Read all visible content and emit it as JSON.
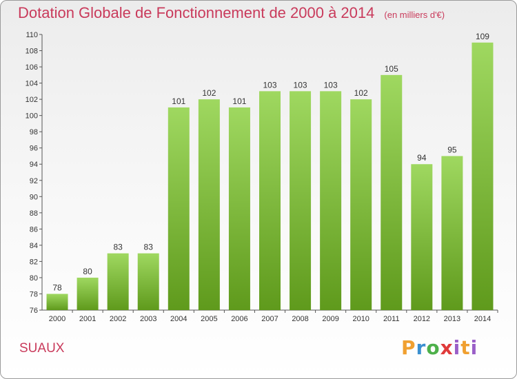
{
  "header": {
    "title": "Dotation Globale de Fonctionnement de 2000 à 2014",
    "units": "(en milliers d'€)"
  },
  "footer": {
    "place": "SUAUX",
    "logo": "Proxiti"
  },
  "colors": {
    "title": "#c93a5b",
    "bar_top": "#9fd860",
    "bar_bottom": "#5f9a1c"
  },
  "chart_data": {
    "type": "bar",
    "title": "Dotation Globale de Fonctionnement de 2000 à 2014",
    "subtitle": "(en milliers d'€)",
    "categories": [
      "2000",
      "2001",
      "2002",
      "2003",
      "2004",
      "2005",
      "2006",
      "2007",
      "2008",
      "2009",
      "2010",
      "2011",
      "2012",
      "2013",
      "2014"
    ],
    "values": [
      78,
      80,
      83,
      83,
      101,
      102,
      101,
      103,
      103,
      103,
      102,
      105,
      94,
      95,
      109
    ],
    "ylim": [
      76,
      110
    ],
    "yticks": [
      76,
      78,
      80,
      82,
      84,
      86,
      88,
      90,
      92,
      94,
      96,
      98,
      100,
      102,
      104,
      106,
      108,
      110
    ],
    "grid": false,
    "data_labels": true
  }
}
